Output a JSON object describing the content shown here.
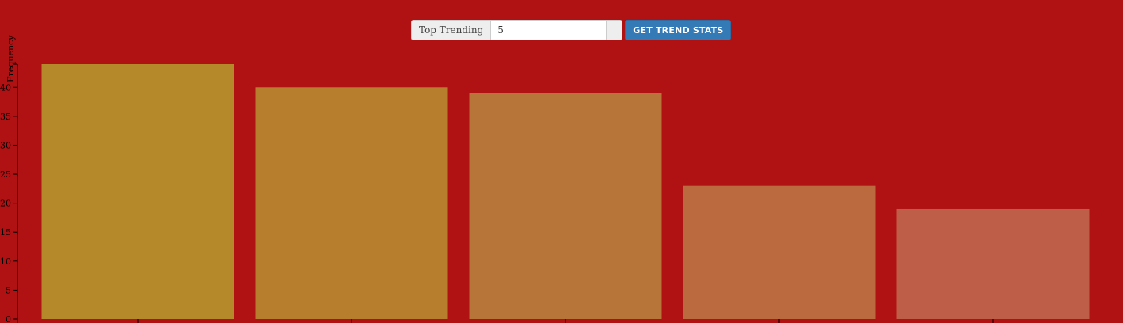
{
  "controls": {
    "label": "Top Trending",
    "count_value": "5",
    "button_label": "GET TREND STATS"
  },
  "colors": {
    "background": "#b01113",
    "button": "#337ab7",
    "bars": [
      "#b5892a",
      "#b77e2e",
      "#b8753a",
      "#bb6a3f",
      "#bf5e48"
    ]
  },
  "chart_data": {
    "type": "bar",
    "title": "",
    "xlabel": "",
    "ylabel": "Frequency",
    "categories": [
      "",
      "",
      "",
      "",
      ""
    ],
    "values": [
      44,
      40,
      39,
      23,
      19
    ],
    "ylim": [
      0,
      44
    ],
    "yticks": [
      0,
      5,
      10,
      15,
      20,
      25,
      30,
      35,
      40
    ],
    "grid": false,
    "legend": "none"
  }
}
